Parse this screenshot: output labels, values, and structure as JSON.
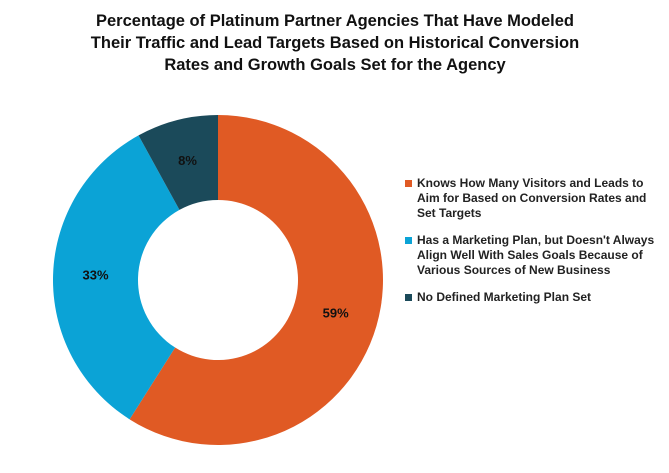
{
  "chart_data": {
    "type": "donut",
    "title": [
      "Percentage of Platinum Partner Agencies That Have Modeled",
      "Their Traffic and Lead Targets Based on Historical Conversion",
      "Rates and Growth Goals Set for the Agency"
    ],
    "categories": [
      "Knows How Many Visitors and Leads to Aim for Based on Conversion Rates and Set Targets",
      "Has a Marketing Plan, but Doesn't Always Align Well With Sales Goals Because of Various Sources of New Business",
      "No Defined Marketing Plan Set"
    ],
    "values": [
      59,
      33,
      8
    ],
    "value_labels": [
      "59%",
      "33%",
      "8%"
    ],
    "colors": [
      "#e05a24",
      "#0ba3d6",
      "#1b4a5a"
    ],
    "legend": "right"
  }
}
